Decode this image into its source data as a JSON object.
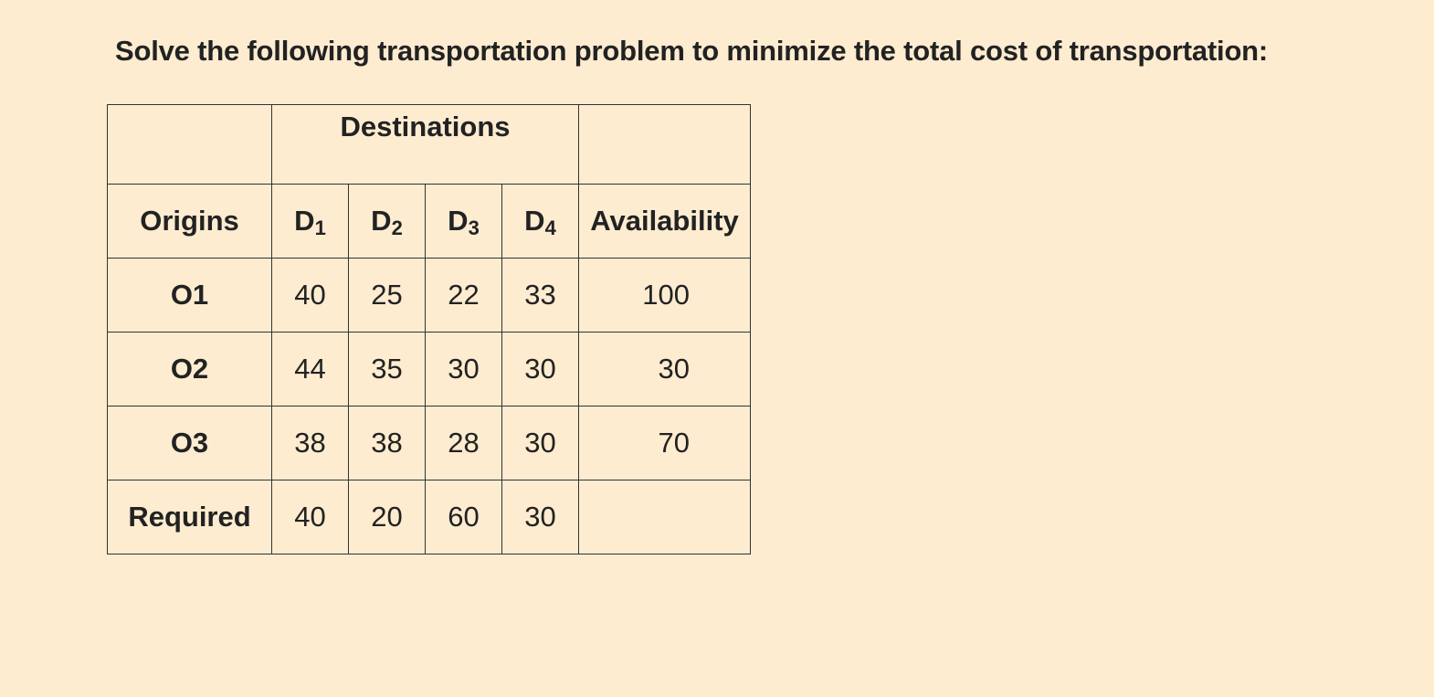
{
  "question": "Solve the following transportation problem to minimize the total cost of transportation:",
  "table": {
    "group_header": "Destinations",
    "origins_header": "Origins",
    "availability_header": "Availability",
    "destinations": [
      {
        "letter": "D",
        "sub": "1"
      },
      {
        "letter": "D",
        "sub": "2"
      },
      {
        "letter": "D",
        "sub": "3"
      },
      {
        "letter": "D",
        "sub": "4"
      }
    ],
    "rows": [
      {
        "origin": "O1",
        "costs": [
          "40",
          "25",
          "22",
          "33"
        ],
        "availability": "100"
      },
      {
        "origin": "O2",
        "costs": [
          "44",
          "35",
          "30",
          "30"
        ],
        "availability": "30"
      },
      {
        "origin": "O3",
        "costs": [
          "38",
          "38",
          "28",
          "30"
        ],
        "availability": "70"
      }
    ],
    "required": {
      "label": "Required",
      "values": [
        "40",
        "20",
        "60",
        "30"
      ]
    }
  }
}
